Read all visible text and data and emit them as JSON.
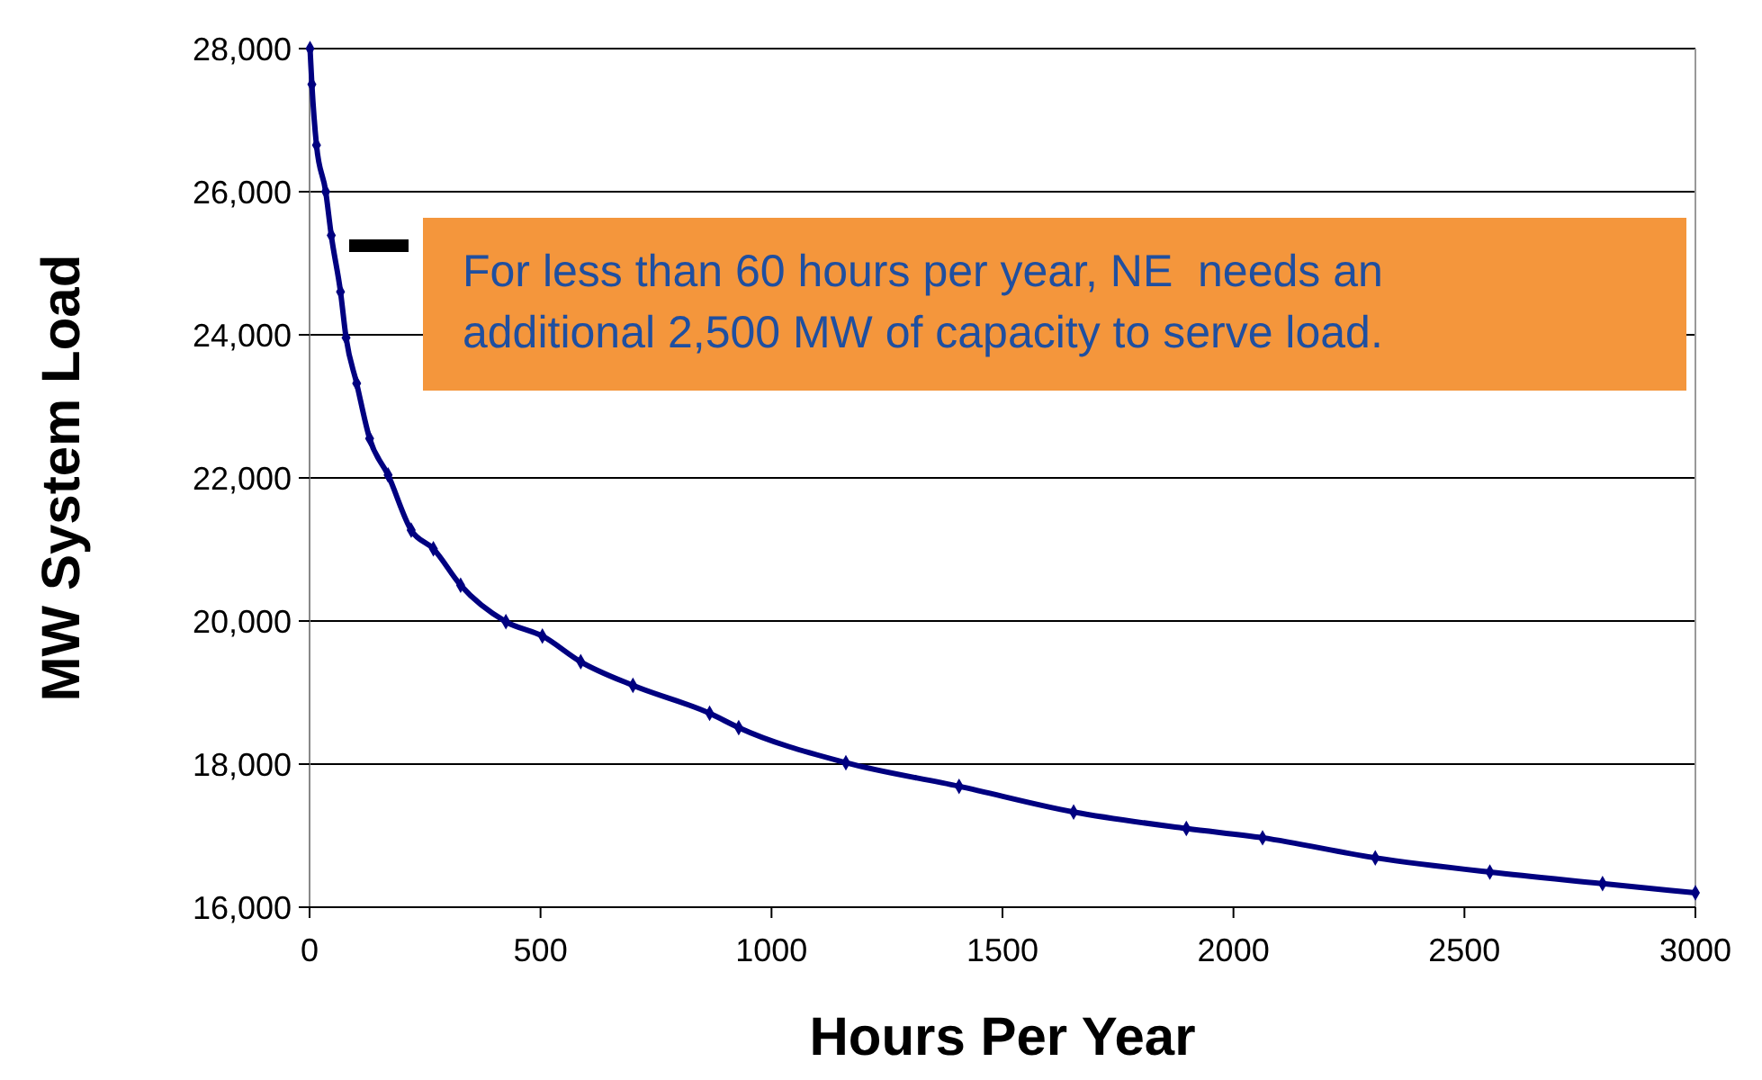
{
  "chart_data": {
    "type": "line",
    "xlabel": "Hours Per Year",
    "ylabel": "MW System Load",
    "x": [
      1,
      5,
      15,
      35,
      47,
      67,
      79,
      102,
      130,
      170,
      220,
      268,
      327,
      425,
      504,
      587,
      700,
      866,
      929,
      1161,
      1406,
      1654,
      1898,
      2063,
      2307,
      2555,
      2799,
      3000
    ],
    "series": [
      {
        "color": "#000080",
        "values": [
          28000,
          27500,
          26650,
          26000,
          25390,
          24600,
          23960,
          23320,
          22550,
          22040,
          21270,
          21010,
          20500,
          19990,
          19790,
          19430,
          19100,
          18710,
          18510,
          18020,
          17690,
          17330,
          17100,
          16970,
          16690,
          16490,
          16330,
          16200
        ]
      }
    ],
    "xlim": [
      0,
      3000
    ],
    "xticks": [
      0,
      500,
      1000,
      1500,
      2000,
      2500,
      3000
    ],
    "ylim": [
      16000,
      28000
    ],
    "yticks": [
      {
        "value": 16000,
        "label": "16,000"
      },
      {
        "value": 18000,
        "label": "18,000"
      },
      {
        "value": 20000,
        "label": "20,000"
      },
      {
        "value": 22000,
        "label": "22,000"
      },
      {
        "value": 24000,
        "label": "24,000"
      },
      {
        "value": 26000,
        "label": "26,000"
      },
      {
        "value": 28000,
        "label": "28,000"
      }
    ],
    "grid": "y",
    "marker": "diamond",
    "line_style": "solid",
    "annotations": [
      "For less than 60 hours per year, NE  needs an additional 2,500 MW of capacity to serve load."
    ]
  }
}
